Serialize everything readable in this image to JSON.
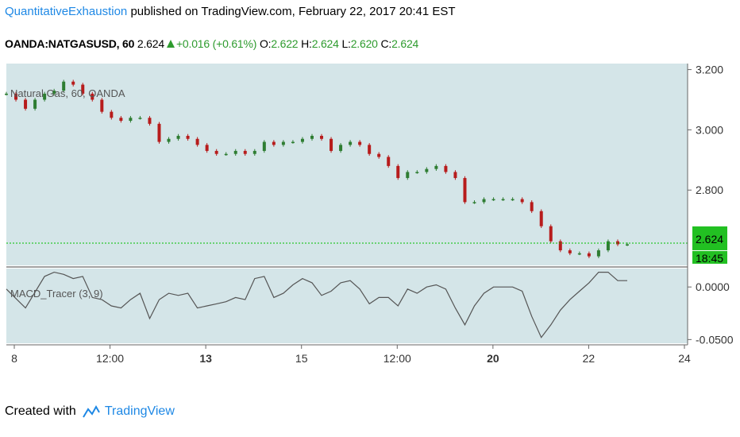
{
  "header": {
    "author": "QuantitativeExhaustion",
    "published": "published on TradingView.com, February 22, 2017 20:41 EST"
  },
  "quote": {
    "symbol": "OANDA:NATGASUSD, 60",
    "last": "2.624",
    "change": "+0.016 (+0.61%)",
    "o_label": "O:",
    "o_value": "2.622",
    "h_label": "H:",
    "h_value": "2.624",
    "l_label": "L:",
    "l_value": "2.620",
    "c_label": "C:",
    "c_value": "2.624"
  },
  "chart_data": [
    {
      "type": "candlestick",
      "title": "Natural Gas, 60, OANDA",
      "series": [
        {
          "name": "Natural Gas, 60, OANDA",
          "values": [
            [
              0,
              3.12
            ],
            [
              5,
              3.1
            ],
            [
              10,
              3.07
            ],
            [
              15,
              3.1
            ],
            [
              20,
              3.12
            ],
            [
              25,
              3.13
            ],
            [
              30,
              3.16
            ],
            [
              35,
              3.15
            ],
            [
              40,
              3.12
            ],
            [
              45,
              3.1
            ],
            [
              50,
              3.06
            ],
            [
              55,
              3.04
            ],
            [
              60,
              3.03
            ],
            [
              65,
              3.04
            ],
            [
              70,
              3.04
            ],
            [
              75,
              3.02
            ],
            [
              80,
              2.96
            ],
            [
              85,
              2.97
            ],
            [
              90,
              2.98
            ],
            [
              95,
              2.97
            ],
            [
              100,
              2.95
            ],
            [
              105,
              2.93
            ],
            [
              110,
              2.92
            ],
            [
              115,
              2.92
            ],
            [
              120,
              2.93
            ],
            [
              125,
              2.92
            ],
            [
              130,
              2.93
            ],
            [
              135,
              2.96
            ],
            [
              140,
              2.95
            ],
            [
              145,
              2.96
            ],
            [
              150,
              2.96
            ],
            [
              155,
              2.97
            ],
            [
              160,
              2.98
            ],
            [
              165,
              2.97
            ],
            [
              170,
              2.93
            ],
            [
              175,
              2.95
            ],
            [
              180,
              2.96
            ],
            [
              185,
              2.95
            ],
            [
              190,
              2.92
            ],
            [
              195,
              2.91
            ],
            [
              200,
              2.88
            ],
            [
              205,
              2.84
            ],
            [
              210,
              2.86
            ],
            [
              215,
              2.86
            ],
            [
              220,
              2.87
            ],
            [
              225,
              2.88
            ],
            [
              230,
              2.86
            ],
            [
              235,
              2.84
            ],
            [
              240,
              2.76
            ],
            [
              245,
              2.76
            ],
            [
              250,
              2.77
            ],
            [
              255,
              2.77
            ],
            [
              260,
              2.77
            ],
            [
              265,
              2.77
            ],
            [
              270,
              2.76
            ],
            [
              275,
              2.73
            ],
            [
              280,
              2.68
            ],
            [
              285,
              2.63
            ],
            [
              290,
              2.6
            ],
            [
              295,
              2.59
            ],
            [
              300,
              2.59
            ],
            [
              305,
              2.58
            ],
            [
              310,
              2.6
            ],
            [
              315,
              2.63
            ],
            [
              320,
              2.62
            ],
            [
              325,
              2.62
            ]
          ]
        }
      ],
      "ylim": [
        2.55,
        3.22
      ],
      "y_ticks": [
        "3.200",
        "3.000",
        "2.800"
      ],
      "last_price_label": "2.624",
      "last_price_value": 2.624,
      "countdown_label": "18:45",
      "colors": {
        "up": "#2e7d32",
        "down": "#b71c1c",
        "price_line": "#00c000",
        "bg": "#d4e5e8"
      },
      "grid": false
    },
    {
      "type": "line",
      "title": "MACD_Tracer (3, 9)",
      "series": [
        {
          "name": "MACD_Tracer (3, 9)",
          "values": [
            [
              0,
              -0.002
            ],
            [
              10,
              -0.02
            ],
            [
              20,
              0.01
            ],
            [
              25,
              0.014
            ],
            [
              30,
              0.012
            ],
            [
              35,
              0.008
            ],
            [
              40,
              0.01
            ],
            [
              45,
              -0.01
            ],
            [
              50,
              -0.012
            ],
            [
              55,
              -0.018
            ],
            [
              60,
              -0.02
            ],
            [
              65,
              -0.012
            ],
            [
              70,
              -0.006
            ],
            [
              75,
              -0.03
            ],
            [
              80,
              -0.012
            ],
            [
              85,
              -0.006
            ],
            [
              90,
              -0.008
            ],
            [
              95,
              -0.006
            ],
            [
              100,
              -0.02
            ],
            [
              105,
              -0.018
            ],
            [
              110,
              -0.016
            ],
            [
              115,
              -0.014
            ],
            [
              120,
              -0.01
            ],
            [
              125,
              -0.012
            ],
            [
              130,
              0.008
            ],
            [
              135,
              0.01
            ],
            [
              140,
              -0.01
            ],
            [
              145,
              -0.006
            ],
            [
              150,
              0.002
            ],
            [
              155,
              0.008
            ],
            [
              160,
              0.004
            ],
            [
              165,
              -0.008
            ],
            [
              170,
              -0.004
            ],
            [
              175,
              0.004
            ],
            [
              180,
              0.006
            ],
            [
              185,
              -0.002
            ],
            [
              190,
              -0.016
            ],
            [
              195,
              -0.01
            ],
            [
              200,
              -0.01
            ],
            [
              205,
              -0.018
            ],
            [
              210,
              -0.002
            ],
            [
              215,
              -0.006
            ],
            [
              220,
              0.0
            ],
            [
              225,
              0.002
            ],
            [
              230,
              -0.002
            ],
            [
              235,
              -0.02
            ],
            [
              240,
              -0.036
            ],
            [
              245,
              -0.018
            ],
            [
              250,
              -0.006
            ],
            [
              255,
              0.0
            ],
            [
              260,
              0.0
            ],
            [
              265,
              0.0
            ],
            [
              270,
              -0.004
            ],
            [
              275,
              -0.028
            ],
            [
              280,
              -0.048
            ],
            [
              285,
              -0.036
            ],
            [
              290,
              -0.022
            ],
            [
              295,
              -0.012
            ],
            [
              300,
              -0.004
            ],
            [
              305,
              0.004
            ],
            [
              310,
              0.014
            ],
            [
              315,
              0.014
            ],
            [
              320,
              0.006
            ],
            [
              325,
              0.006
            ]
          ]
        }
      ],
      "ylim": [
        -0.052,
        0.016
      ],
      "y_ticks": [
        "0.0000",
        "-0.0500"
      ],
      "colors": {
        "line": "#555555",
        "bg": "#d4e5e8"
      },
      "grid": false
    }
  ],
  "x_axis": {
    "ticks": [
      "8",
      "12:00",
      "13",
      "15",
      "12:00",
      "20",
      "22",
      "24"
    ],
    "bold": [
      false,
      false,
      true,
      false,
      false,
      true,
      false,
      false
    ]
  },
  "footer": {
    "created_with": "Created with",
    "brand": "TradingView"
  }
}
